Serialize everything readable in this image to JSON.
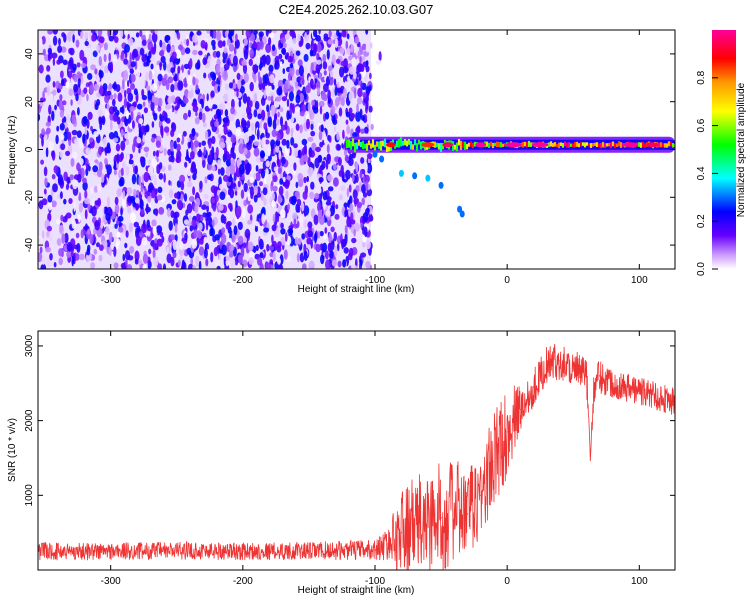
{
  "title": "C2E4.2025.262.10.03.G07",
  "chart_data": [
    {
      "type": "heatmap",
      "title": "C2E4.2025.262.10.03.G07",
      "xlabel": "Height of straight line (km)",
      "ylabel": "Frequency (Hz)",
      "xlim": [
        -355,
        127
      ],
      "ylim": [
        -50,
        50
      ],
      "x_ticks": [
        -300,
        -200,
        -100,
        0,
        100
      ],
      "x_tick_labels": [
        "-300",
        "-200",
        "-100",
        "0",
        "100"
      ],
      "y_ticks": [
        -40,
        -20,
        0,
        20,
        40
      ],
      "y_tick_labels": [
        "-40",
        "-20",
        "0",
        "20",
        "40"
      ],
      "noise_region": {
        "x_range": [
          -355,
          -103
        ],
        "y_range": [
          -50,
          50
        ],
        "amplitude_range": [
          0.0,
          0.25
        ]
      },
      "signal_band": {
        "x_range": [
          -122,
          127
        ],
        "center_frequency": 2,
        "peak_amplitude": 1.0
      },
      "secondary_trace": [
        {
          "x": -100,
          "y": -2,
          "amplitude": 0.3
        },
        {
          "x": -95,
          "y": -4,
          "amplitude": 0.3
        },
        {
          "x": -80,
          "y": -10,
          "amplitude": 0.35
        },
        {
          "x": -70,
          "y": -11,
          "amplitude": 0.3
        },
        {
          "x": -60,
          "y": -12,
          "amplitude": 0.35
        },
        {
          "x": -50,
          "y": -15,
          "amplitude": 0.3
        },
        {
          "x": -36,
          "y": -25,
          "amplitude": 0.3
        },
        {
          "x": -34,
          "y": -27,
          "amplitude": 0.3
        }
      ],
      "colorbar": {
        "label": "Normalized spectral amplitude",
        "range": [
          0.0,
          1.0
        ],
        "ticks": [
          0.0,
          0.2,
          0.4,
          0.6,
          0.8
        ],
        "tick_labels": [
          "0.0",
          "0.2",
          "0.4",
          "0.6",
          "0.8"
        ],
        "colormap": [
          "#ffffff",
          "#cc99ff",
          "#6600ff",
          "#0000ff",
          "#00ffff",
          "#00ff00",
          "#ffff00",
          "#ff9900",
          "#ff0000",
          "#ff0099"
        ]
      }
    },
    {
      "type": "line",
      "xlabel": "Height of straight line (km)",
      "ylabel": "SNR (10 * v/v)",
      "xlim": [
        -355,
        127
      ],
      "ylim": [
        0,
        3200
      ],
      "x_ticks": [
        -300,
        -200,
        -100,
        0,
        100
      ],
      "x_tick_labels": [
        "-300",
        "-200",
        "-100",
        "0",
        "100"
      ],
      "y_ticks": [
        1000,
        2000,
        3000
      ],
      "y_tick_labels": [
        "1000",
        "2000",
        "3000"
      ],
      "line_color": "#ee3333",
      "series": [
        {
          "name": "SNR",
          "x": [
            -355,
            -300,
            -250,
            -200,
            -150,
            -100,
            -90,
            -80,
            -70,
            -60,
            -50,
            -40,
            -30,
            -20,
            -10,
            0,
            10,
            20,
            30,
            40,
            50,
            60,
            63,
            66,
            70,
            80,
            90,
            100,
            110,
            127
          ],
          "y": [
            250,
            250,
            260,
            250,
            255,
            270,
            350,
            500,
            600,
            650,
            700,
            800,
            750,
            1000,
            1450,
            1850,
            2150,
            2450,
            2750,
            2800,
            2700,
            2600,
            1600,
            2500,
            2600,
            2500,
            2450,
            2400,
            2350,
            2250
          ],
          "spread": [
            120,
            120,
            120,
            120,
            120,
            140,
            220,
            600,
            650,
            700,
            750,
            700,
            600,
            600,
            700,
            600,
            350,
            250,
            250,
            250,
            250,
            250,
            200,
            250,
            250,
            200,
            200,
            200,
            200,
            200
          ]
        }
      ]
    }
  ]
}
